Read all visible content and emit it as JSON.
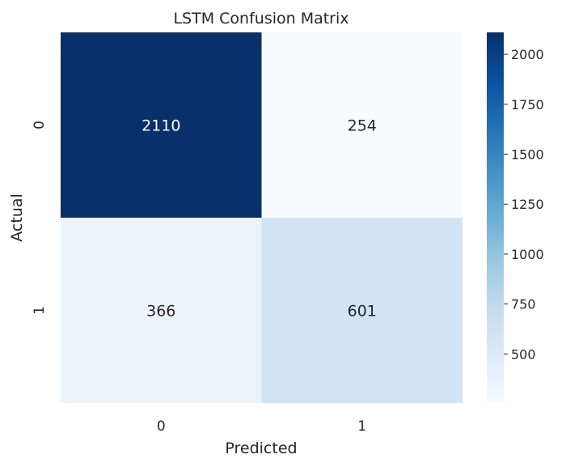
{
  "chart_data": {
    "type": "heatmap",
    "title": "LSTM Confusion Matrix",
    "xlabel": "Predicted",
    "ylabel": "Actual",
    "x_categories": [
      "0",
      "1"
    ],
    "y_categories": [
      "0",
      "1"
    ],
    "values": [
      [
        2110,
        254
      ],
      [
        366,
        601
      ]
    ],
    "colormap": "Blues",
    "colorbar": {
      "range": [
        254,
        2110
      ],
      "ticks": [
        500,
        750,
        1000,
        1250,
        1500,
        1750,
        2000
      ],
      "tick_labels": [
        "500",
        "750",
        "1000",
        "1250",
        "1500",
        "1750",
        "2000"
      ]
    },
    "grid": false
  }
}
